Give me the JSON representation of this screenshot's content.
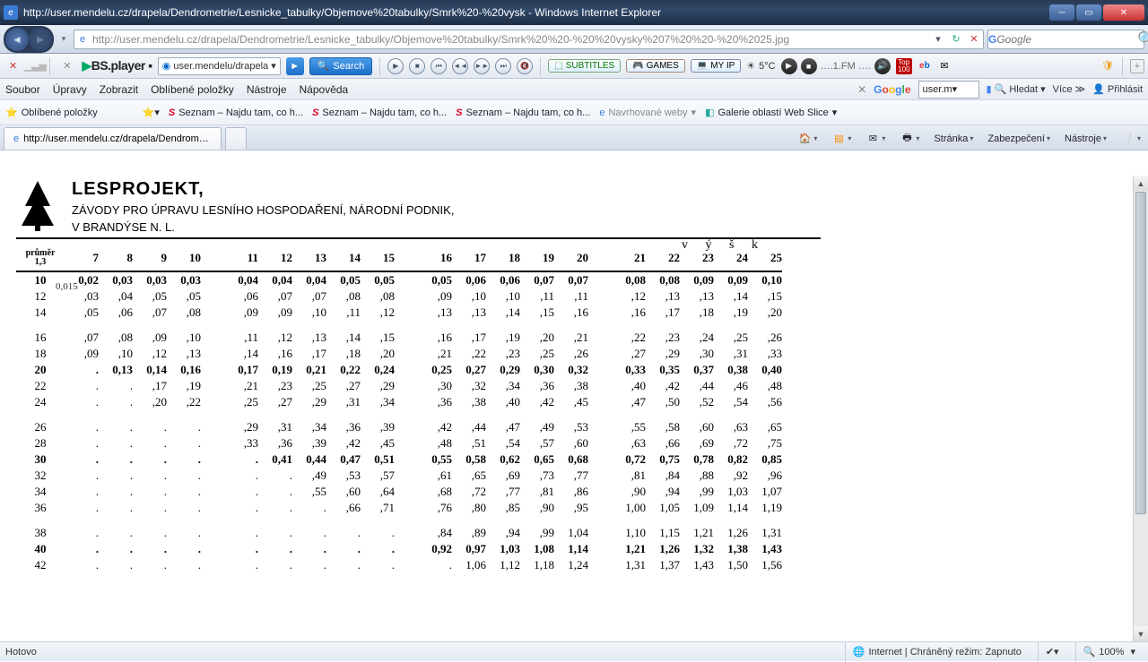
{
  "window": {
    "title": "http://user.mendelu.cz/drapela/Dendrometrie/Lesnicke_tabulky/Objemove%20tabulky/Smrk%20-%20vysk - Windows Internet Explorer"
  },
  "address": {
    "url": "http://user.mendelu.cz/drapela/Dendrometrie/Lesnicke_tabulky/Objemove%20tabulky/Smrk%20%20-%20%20vysky%207%20%20-%20%2025.jpg"
  },
  "search_top": {
    "placeholder": "Google"
  },
  "bs_toolbar": {
    "host": "user.mendelu/drapela",
    "search": "Search",
    "subtitles": "SUBTITLES",
    "games": "GAMES",
    "myip": "MY IP",
    "temp": "5°C",
    "radio": "….1.FM ….",
    "top100": "Top\n100"
  },
  "menu": {
    "items": [
      "Soubor",
      "Úpravy",
      "Zobrazit",
      "Oblíbené položky",
      "Nástroje",
      "Nápověda"
    ],
    "google_value": "user.m",
    "hledat": "Hledat",
    "vice": "Více",
    "prihlasit": "Přihlásit"
  },
  "favbar": {
    "fav": "Oblíbené položky",
    "items": [
      "Seznam – Najdu tam, co h...",
      "Seznam – Najdu tam, co h...",
      "Seznam – Najdu tam, co h..."
    ],
    "navrh": "Navrhované weby",
    "galerie": "Galerie oblastí Web Slice"
  },
  "tab": {
    "title": "http://user.mendelu.cz/drapela/Dendrometrie/Le..."
  },
  "cmdbar": {
    "stranka": "Stránka",
    "zabez": "Zabezpečení",
    "nastroje": "Nástroje"
  },
  "doc": {
    "brand": "LESPROJEKT,",
    "sub1": "ZÁVODY PRO ÚPRAVU LESNÍHO HOSPODAŘENÍ, NÁRODNÍ PODNIK,",
    "sub2": "V BRANDÝSE N. L.",
    "corner": "průměr\n1,3",
    "vysk": "v ý š k",
    "annot": "0,015",
    "cols": [
      "7",
      "8",
      "9",
      "10",
      "11",
      "12",
      "13",
      "14",
      "15",
      "16",
      "17",
      "18",
      "19",
      "20",
      "21",
      "22",
      "23",
      "24",
      "25"
    ],
    "rows": [
      {
        "d": "10",
        "bold": true,
        "v": [
          "0,02",
          "0,03",
          "0,03",
          "0,03",
          "0,04",
          "0,04",
          "0,04",
          "0,05",
          "0,05",
          "0,05",
          "0,06",
          "0,06",
          "0,07",
          "0,07",
          "0,08",
          "0,08",
          "0,09",
          "0,09",
          "0,10"
        ]
      },
      {
        "d": "12",
        "v": [
          ",03",
          ",04",
          ",05",
          ",05",
          ",06",
          ",07",
          ",07",
          ",08",
          ",08",
          ",09",
          ",10",
          ",10",
          ",11",
          ",11",
          ",12",
          ",13",
          ",13",
          ",14",
          ",15"
        ]
      },
      {
        "d": "14",
        "v": [
          ",05",
          ",06",
          ",07",
          ",08",
          ",09",
          ",09",
          ",10",
          ",11",
          ",12",
          ",13",
          ",13",
          ",14",
          ",15",
          ",16",
          ",16",
          ",17",
          ",18",
          ",19",
          ",20"
        ]
      },
      {
        "sp": true
      },
      {
        "d": "16",
        "v": [
          ",07",
          ",08",
          ",09",
          ",10",
          ",11",
          ",12",
          ",13",
          ",14",
          ",15",
          ",16",
          ",17",
          ",19",
          ",20",
          ",21",
          ",22",
          ",23",
          ",24",
          ",25",
          ",26"
        ]
      },
      {
        "d": "18",
        "v": [
          ",09",
          ",10",
          ",12",
          ",13",
          ",14",
          ",16",
          ",17",
          ",18",
          ",20",
          ",21",
          ",22",
          ",23",
          ",25",
          ",26",
          ",27",
          ",29",
          ",30",
          ",31",
          ",33"
        ]
      },
      {
        "d": "20",
        "bold": true,
        "v": [
          ".",
          "0,13",
          "0,14",
          "0,16",
          "0,17",
          "0,19",
          "0,21",
          "0,22",
          "0,24",
          "0,25",
          "0,27",
          "0,29",
          "0,30",
          "0,32",
          "0,33",
          "0,35",
          "0,37",
          "0,38",
          "0,40"
        ]
      },
      {
        "d": "22",
        "v": [
          ".",
          ".",
          ",17",
          ",19",
          ",21",
          ",23",
          ",25",
          ",27",
          ",29",
          ",30",
          ",32",
          ",34",
          ",36",
          ",38",
          ",40",
          ",42",
          ",44",
          ",46",
          ",48"
        ]
      },
      {
        "d": "24",
        "v": [
          ".",
          ".",
          ",20",
          ",22",
          ",25",
          ",27",
          ",29",
          ",31",
          ",34",
          ",36",
          ",38",
          ",40",
          ",42",
          ",45",
          ",47",
          ",50",
          ",52",
          ",54",
          ",56"
        ]
      },
      {
        "sp": true
      },
      {
        "d": "26",
        "v": [
          ".",
          ".",
          ".",
          ".",
          ",29",
          ",31",
          ",34",
          ",36",
          ",39",
          ",42",
          ",44",
          ",47",
          ",49",
          ",53",
          ",55",
          ",58",
          ",60",
          ",63",
          ",65"
        ]
      },
      {
        "d": "28",
        "v": [
          ".",
          ".",
          ".",
          ".",
          ",33",
          ",36",
          ",39",
          ",42",
          ",45",
          ",48",
          ",51",
          ",54",
          ",57",
          ",60",
          ",63",
          ",66",
          ",69",
          ",72",
          ",75"
        ]
      },
      {
        "d": "30",
        "bold": true,
        "v": [
          ".",
          ".",
          ".",
          ".",
          ".",
          "0,41",
          "0,44",
          "0,47",
          "0,51",
          "0,55",
          "0,58",
          "0,62",
          "0,65",
          "0,68",
          "0,72",
          "0,75",
          "0,78",
          "0,82",
          "0,85"
        ]
      },
      {
        "d": "32",
        "v": [
          ".",
          ".",
          ".",
          ".",
          ".",
          ".",
          ",49",
          ",53",
          ",57",
          ",61",
          ",65",
          ",69",
          ",73",
          ",77",
          ",81",
          ",84",
          ",88",
          ",92",
          ",96"
        ]
      },
      {
        "d": "34",
        "v": [
          ".",
          ".",
          ".",
          ".",
          ".",
          ".",
          ",55",
          ",60",
          ",64",
          ",68",
          ",72",
          ",77",
          ",81",
          ",86",
          ",90",
          ",94",
          ",99",
          "1,03",
          "1,07"
        ]
      },
      {
        "d": "36",
        "v": [
          ".",
          ".",
          ".",
          ".",
          ".",
          ".",
          ".",
          ",66",
          ",71",
          ",76",
          ",80",
          ",85",
          ",90",
          ",95",
          "1,00",
          "1,05",
          "1,09",
          "1,14",
          "1,19"
        ]
      },
      {
        "sp": true
      },
      {
        "d": "38",
        "v": [
          ".",
          ".",
          ".",
          ".",
          ".",
          ".",
          ".",
          ".",
          ".",
          ",84",
          ",89",
          ",94",
          ",99",
          "1,04",
          "1,10",
          "1,15",
          "1,21",
          "1,26",
          "1,31"
        ]
      },
      {
        "d": "40",
        "bold": true,
        "v": [
          ".",
          ".",
          ".",
          ".",
          ".",
          ".",
          ".",
          ".",
          ".",
          "0,92",
          "0,97",
          "1,03",
          "1,08",
          "1,14",
          "1,21",
          "1,26",
          "1,32",
          "1,38",
          "1,43"
        ]
      },
      {
        "d": "42",
        "v": [
          ".",
          ".",
          ".",
          ".",
          ".",
          ".",
          ".",
          ".",
          ".",
          ".",
          "1,06",
          "1,12",
          "1,18",
          "1,24",
          "1,31",
          "1,37",
          "1,43",
          "1,50",
          "1,56"
        ]
      }
    ]
  },
  "status": {
    "left": "Hotovo",
    "zone": "Internet | Chráněný režim: Zapnuto",
    "zoom": "100%"
  }
}
